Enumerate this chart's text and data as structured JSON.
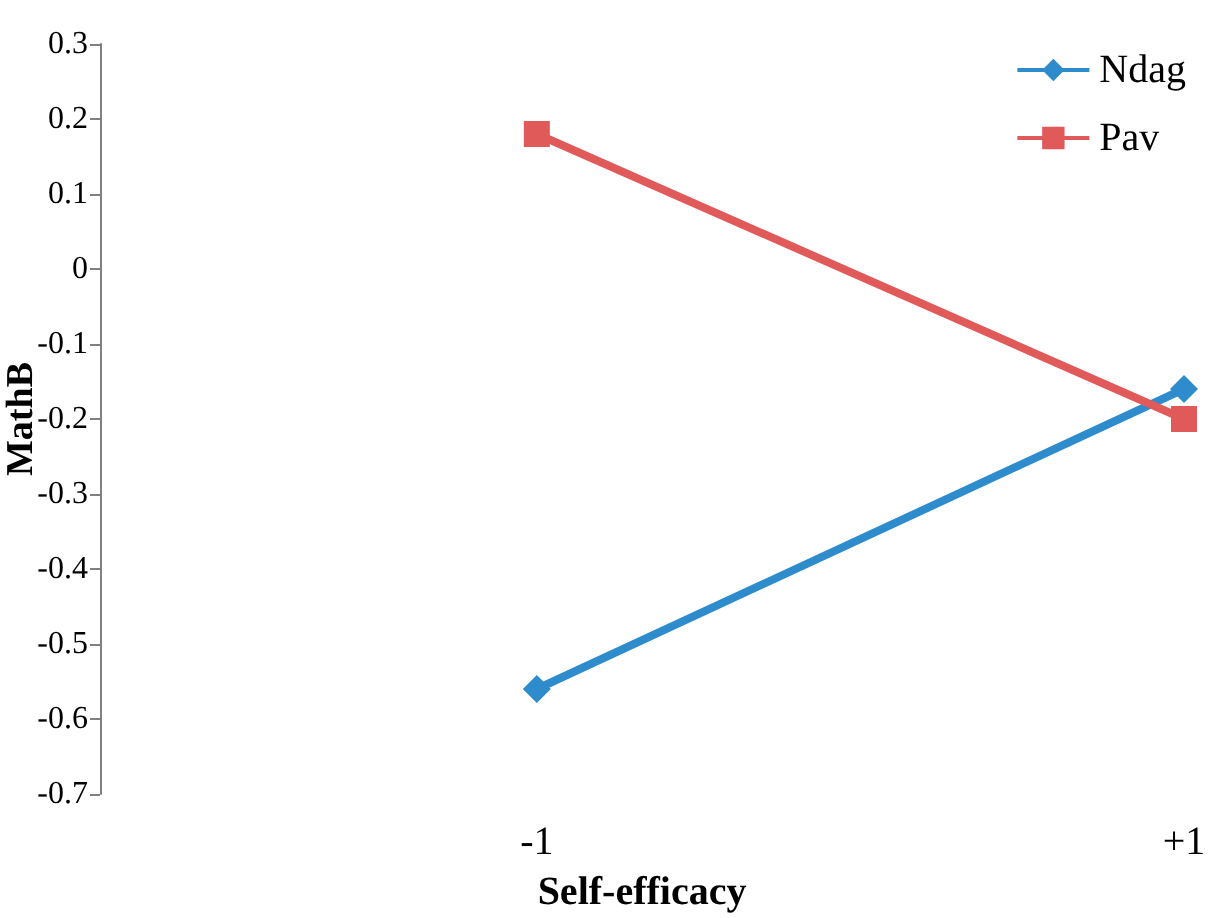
{
  "chart_data": {
    "type": "line",
    "xlabel": "Self-efficacy",
    "ylabel": "MathB",
    "x": [
      -1,
      1
    ],
    "series": [
      {
        "name": "Ndag",
        "color": "#2e8bcc",
        "marker": "diamond",
        "values": [
          -0.56,
          -0.16
        ]
      },
      {
        "name": "Pav",
        "color": "#e05a5a",
        "marker": "square",
        "values": [
          0.18,
          -0.2
        ]
      }
    ],
    "xlim": [
      -2.35,
      1
    ],
    "xticks": [
      {
        "value": -1,
        "label": "-1"
      },
      {
        "value": 1,
        "label": "+1"
      }
    ],
    "ylim": [
      -0.7,
      0.3
    ],
    "yticks": [
      -0.7,
      -0.6,
      -0.5,
      -0.4,
      -0.3,
      -0.2,
      -0.1,
      0,
      0.1,
      0.2,
      0.3
    ],
    "grid": false,
    "legend": "top right",
    "line_style": "solid"
  }
}
